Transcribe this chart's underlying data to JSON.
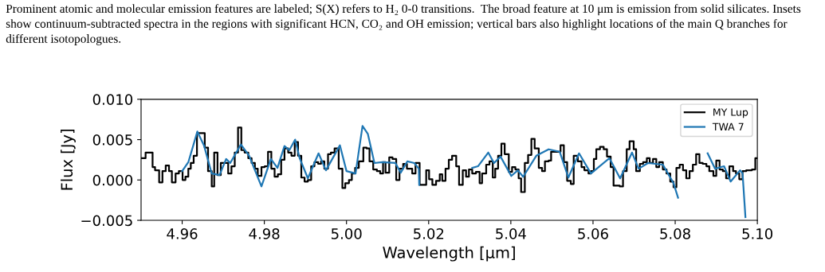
{
  "chart_data": {
    "type": "step",
    "annotations": [
      "Prominent atomic and molecular emission features are labeled; S(X) refers to H₂ 0-0 transitions.  The broad feature at 10 μm is emission from solid silicates. Insets show continuum-subtracted spectra in the regions with significant HCN, CO₂ and OH emission; vertical bars also highlight locations of the main Q branches for different isotopologues."
    ],
    "xlabel": "Wavelength [μm]",
    "ylabel": "Flux [Jy]",
    "xlim": [
      4.95,
      5.1
    ],
    "ylim": [
      -0.005,
      0.01
    ],
    "xticks": [
      4.96,
      4.98,
      {
        "value": 5.0,
        "label": "5.00"
      },
      5.02,
      5.04,
      5.06,
      5.08,
      {
        "value": 5.1,
        "label": "5.10"
      }
    ],
    "yticks": [
      {
        "value": -0.005,
        "label": "−0.005"
      },
      {
        "value": 0,
        "label": "0.000"
      },
      0.005,
      {
        "value": 0.01,
        "label": "0.010"
      }
    ],
    "legend": "top right",
    "grid": false,
    "series": [
      {
        "name": "MY Lup",
        "color": "#000000",
        "x": [
          4.95,
          4.9511,
          4.9528,
          4.9534,
          4.9544,
          4.9552,
          4.956,
          4.9568,
          4.9575,
          4.9584,
          4.9592,
          4.9601,
          4.9608,
          4.9615,
          4.9621,
          4.9628,
          4.9636,
          4.9655,
          4.9663,
          4.9672,
          4.9678,
          4.9686,
          4.9694,
          4.9712,
          4.972,
          4.9728,
          4.9736,
          4.9744,
          4.9752,
          4.9761,
          4.9769,
          4.9777,
          4.9784,
          4.9793,
          4.9801,
          4.9809,
          4.9817,
          4.9825,
          4.9833,
          4.9841,
          4.9849,
          4.9858,
          4.9866,
          4.9874,
          4.9882,
          4.989,
          4.9898,
          4.9906,
          4.9914,
          4.9922,
          4.9931,
          4.9938,
          4.9946,
          4.9955,
          4.9962,
          4.9971,
          4.9981,
          4.999,
          4.9997,
          5.0006,
          5.0013,
          5.0021,
          5.003,
          5.0041,
          5.0049,
          5.0056,
          5.0065,
          5.0074,
          5.0082,
          5.0089,
          5.0095,
          5.0104,
          5.0112,
          5.0121,
          5.0129,
          5.0138,
          5.0147,
          5.016,
          5.0168,
          5.0178,
          5.0194,
          5.0201,
          5.0209,
          5.0218,
          5.0227,
          5.0233,
          5.0241,
          5.0249,
          5.0257,
          5.0267,
          5.0274,
          5.0283,
          5.0291,
          5.0298,
          5.0306,
          5.0315,
          5.0324,
          5.033,
          5.034,
          5.0348,
          5.0356,
          5.0362,
          5.0369,
          5.0377,
          5.0385,
          5.0395,
          5.0403,
          5.0411,
          5.0419,
          5.0425,
          5.0434,
          5.0442,
          5.045,
          5.0458,
          5.0468,
          5.0476,
          5.0483,
          5.0492,
          5.0498,
          5.0521,
          5.0529,
          5.0537,
          5.0546,
          5.0553,
          5.0563,
          5.0572,
          5.0579,
          5.0589,
          5.0595,
          5.0602,
          5.0608,
          5.0617,
          5.0626,
          5.0634,
          5.0643,
          5.065,
          5.0665,
          5.0673,
          5.0682,
          5.0689,
          5.0699,
          5.0705,
          5.0714,
          5.0722,
          5.0731,
          5.0738,
          5.0746,
          5.0754,
          5.0761,
          5.077,
          5.0779,
          5.0788,
          5.0796,
          5.0803,
          5.0811,
          5.0819,
          5.0827,
          5.0835,
          5.0843,
          5.0851,
          5.0859,
          5.0867,
          5.0876,
          5.0883,
          5.0893,
          5.09,
          5.0908,
          5.0916,
          5.0924,
          5.0932,
          5.0941,
          5.0948,
          5.0956,
          5.0964,
          5.0973,
          5.0987,
          5.0995,
          5.1
        ],
        "values": [
          0.0027,
          0.0034,
          0.0016,
          0.0012,
          -0.0003,
          0.0011,
          0.0018,
          0.0011,
          -0.0003,
          0.0008,
          0.0011,
          0.0,
          0.0004,
          0.0014,
          0.0021,
          0.003,
          0.0058,
          0.004,
          0.0011,
          -0.0008,
          0.0034,
          0.0006,
          0.0021,
          0.0008,
          0.0017,
          0.0034,
          0.0065,
          0.0037,
          0.0034,
          0.0027,
          0.0021,
          0.0014,
          0.0005,
          0.0016,
          0.0017,
          0.0035,
          0.0014,
          0.0004,
          0.0007,
          0.0025,
          0.0039,
          0.0034,
          0.003,
          0.0047,
          0.003,
          0.0003,
          -0.0002,
          0.0,
          0.0017,
          0.0022,
          0.002,
          0.0023,
          0.0014,
          0.0032,
          0.0034,
          0.0039,
          0.0014,
          -0.001,
          -0.0004,
          0.0,
          0.0008,
          0.0015,
          0.0023,
          0.004,
          0.0039,
          0.0023,
          0.0013,
          0.0011,
          0.0008,
          0.0022,
          0.0009,
          0.0028,
          0.0026,
          0.0,
          0.0014,
          0.002,
          0.0014,
          0.0008,
          0.0021,
          -0.0006,
          0.0012,
          0.0001,
          -0.0006,
          -0.0001,
          0.0007,
          -0.0001,
          0.0014,
          0.0025,
          0.003,
          0.0017,
          -0.0006,
          0.0012,
          0.0004,
          0.0013,
          0.0008,
          0.001,
          -0.0004,
          0.0008,
          0.0019,
          0.0023,
          0.0003,
          0.0014,
          0.003,
          0.0045,
          0.0032,
          0.001,
          0.0016,
          0.0013,
          0.0002,
          -0.0015,
          0.0021,
          0.0031,
          0.0051,
          0.0039,
          0.0015,
          0.0011,
          0.0023,
          0.0024,
          0.0035,
          0.0043,
          0.0022,
          -0.0001,
          -0.0005,
          0.003,
          0.0023,
          0.0016,
          0.0012,
          0.0008,
          0.0011,
          0.0026,
          0.0038,
          0.0041,
          0.0038,
          0.0029,
          0.0016,
          -0.0007,
          -0.0008,
          0.0011,
          0.0038,
          0.0048,
          0.0038,
          0.0011,
          0.002,
          0.0022,
          0.0027,
          0.0021,
          0.0026,
          0.0016,
          0.0022,
          0.0013,
          0.0008,
          -0.0002,
          -0.0009,
          0.0015,
          0.0019,
          0.0012,
          0.0002,
          0.0011,
          0.0019,
          0.0032,
          0.0021,
          0.002,
          0.0017,
          0.0011,
          0.0005,
          0.0024,
          0.0013,
          0.0011,
          0.0002,
          0.0017,
          0.0011,
          0.0008,
          0.0001,
          0.0011,
          0.0012,
          0.0013,
          0.0027,
          0.0027
        ]
      },
      {
        "name": "TWA 7",
        "color": "#1f77b4",
        "type": "line",
        "x": [
          4.96,
          4.9615,
          4.9637,
          4.9653,
          4.9672,
          4.9691,
          4.9707,
          4.9717,
          4.9743,
          4.9763,
          4.9793,
          4.9816,
          4.9832,
          4.9849,
          4.9861,
          4.9875,
          4.9886,
          4.9906,
          4.9932,
          4.995,
          4.9984,
          5.0,
          5.0022,
          5.0039,
          5.0052,
          5.0068,
          5.0087,
          5.0119,
          5.0132,
          5.0148,
          5.0165,
          5.0176,
          5.0177,
          5.024,
          5.0306,
          5.032,
          5.0345,
          5.0359,
          5.0375,
          5.0401,
          5.0417,
          5.043,
          5.0462,
          5.0492,
          5.0519,
          5.054,
          5.0566,
          5.0595,
          5.064,
          5.0666,
          5.0695,
          5.0711,
          5.0734,
          5.077,
          5.0796,
          5.0807,
          5.084,
          5.0879,
          5.0897,
          5.0919,
          5.0935,
          5.0958,
          5.0964,
          5.0971
        ],
        "values": [
          0.0011,
          0.0022,
          0.006,
          0.0043,
          0.0008,
          0.0006,
          0.0026,
          0.0021,
          0.0044,
          0.003,
          -0.0008,
          0.0026,
          0.0015,
          0.0042,
          0.0037,
          0.005,
          0.0027,
          0.0002,
          0.0033,
          0.0012,
          0.0043,
          0.0011,
          0.0008,
          0.0067,
          0.0057,
          0.0021,
          0.0022,
          0.0021,
          0.0009,
          0.0023,
          0.0021,
          0.0014,
          -0.0006,
          null,
          0.0015,
          0.0017,
          0.0034,
          0.0021,
          0.0029,
          0.0005,
          0.0012,
          0.0004,
          0.003,
          0.0038,
          0.0035,
          0.0003,
          0.0033,
          0.0008,
          0.0027,
          0.0002,
          0.0034,
          0.0014,
          0.0021,
          0.0019,
          -0.0004,
          -0.0022,
          null,
          0.0033,
          0.0014,
          0.0017,
          -0.0002,
          0.0012,
          0.0008,
          -0.0046
        ]
      }
    ]
  }
}
